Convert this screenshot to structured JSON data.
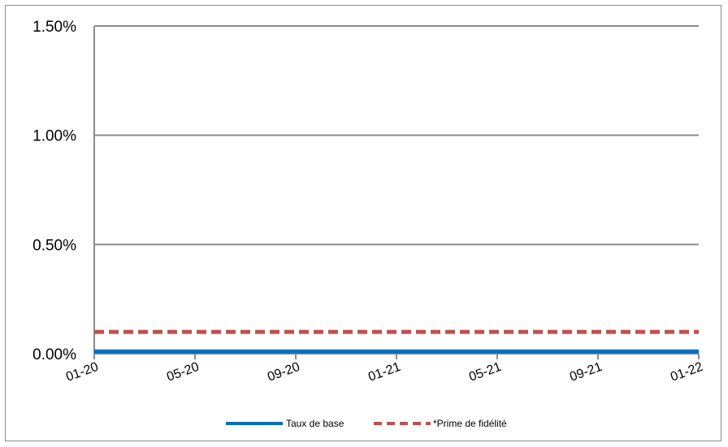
{
  "chart_data": {
    "type": "line",
    "title": "",
    "xlabel": "",
    "ylabel": "",
    "x": [
      "2020-01",
      "2022-01"
    ],
    "x_tick_labels": [
      "01-20",
      "05-20",
      "09-20",
      "01-21",
      "05-21",
      "09-21",
      "01-22"
    ],
    "y_tick_labels": [
      "0.00%",
      "0.50%",
      "1.00%",
      "1.50%"
    ],
    "y_ticks": [
      0,
      0.5,
      1.0,
      1.5
    ],
    "ylim": [
      0,
      1.5
    ],
    "y_unit": "%",
    "grid": "horizontal",
    "legend_position": "bottom",
    "series": [
      {
        "name": "Taux de base",
        "values": [
          0.01,
          0.01
        ],
        "color": "#0070c0",
        "line_style": "solid"
      },
      {
        "name": "*Prime de fidélité",
        "values": [
          0.1,
          0.1
        ],
        "color": "#c0504d",
        "line_style": "dashed"
      }
    ]
  }
}
